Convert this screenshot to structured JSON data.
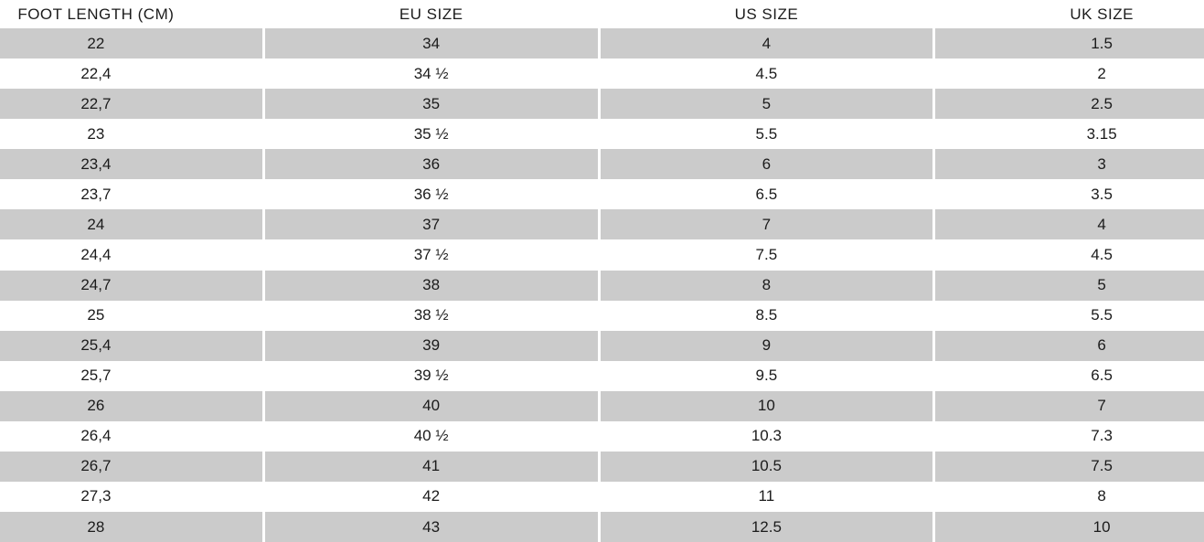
{
  "chart_data": {
    "type": "table",
    "columns": [
      "FOOT LENGTH (CM)",
      "EU SIZE",
      "US SIZE",
      "UK SIZE"
    ],
    "rows": [
      [
        "22",
        "34",
        "4",
        "1.5"
      ],
      [
        "22,4",
        "34 ½",
        "4.5",
        "2"
      ],
      [
        "22,7",
        "35",
        "5",
        "2.5"
      ],
      [
        "23",
        "35 ½",
        "5.5",
        "3.15"
      ],
      [
        "23,4",
        "36",
        "6",
        "3"
      ],
      [
        "23,7",
        "36 ½",
        "6.5",
        "3.5"
      ],
      [
        "24",
        "37",
        "7",
        "4"
      ],
      [
        "24,4",
        "37 ½",
        "7.5",
        "4.5"
      ],
      [
        "24,7",
        "38",
        "8",
        "5"
      ],
      [
        "25",
        "38 ½",
        "8.5",
        "5.5"
      ],
      [
        "25,4",
        "39",
        "9",
        "6"
      ],
      [
        "25,7",
        "39 ½",
        "9.5",
        "6.5"
      ],
      [
        "26",
        "40",
        "10",
        "7"
      ],
      [
        "26,4",
        "40 ½",
        "10.3",
        "7.3"
      ],
      [
        "26,7",
        "41",
        "10.5",
        "7.5"
      ],
      [
        "27,3",
        "42",
        "11",
        "8"
      ],
      [
        "28",
        "43",
        "12.5",
        "10"
      ]
    ],
    "layout": {
      "grid": "off",
      "row_striping": "alternating, first data row shaded"
    }
  },
  "colors": {
    "row_stripe": "#cbcbcb",
    "text": "#1b1b1b",
    "background": "#ffffff"
  }
}
